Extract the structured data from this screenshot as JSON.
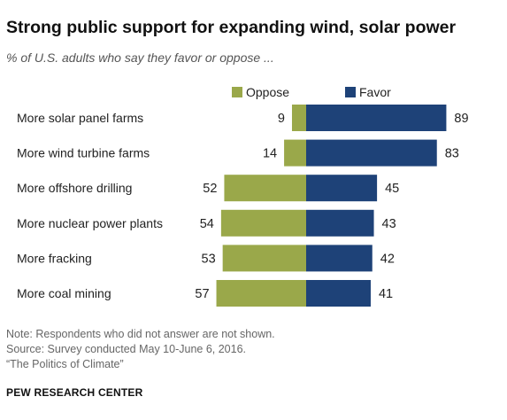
{
  "title": "Strong public support for expanding wind, solar power",
  "subtitle": "% of U.S. adults who say they favor or oppose ...",
  "chart_data": {
    "type": "bar",
    "orientation": "horizontal-diverging",
    "categories": [
      "More solar panel farms",
      "More wind turbine farms",
      "More offshore drilling",
      "More nuclear power plants",
      "More fracking",
      "More coal mining"
    ],
    "series": [
      {
        "name": "Oppose",
        "values": [
          9,
          14,
          52,
          54,
          53,
          57
        ],
        "color": "#9aa84a"
      },
      {
        "name": "Favor",
        "values": [
          89,
          83,
          45,
          43,
          42,
          41
        ],
        "color": "#1e4278"
      }
    ],
    "legend": "top",
    "grid": false
  },
  "notes": [
    "Note: Respondents who did not answer are not shown.",
    "Source: Survey conducted May 10-June 6, 2016.",
    "“The Politics of Climate”"
  ],
  "source_org": "PEW RESEARCH CENTER"
}
